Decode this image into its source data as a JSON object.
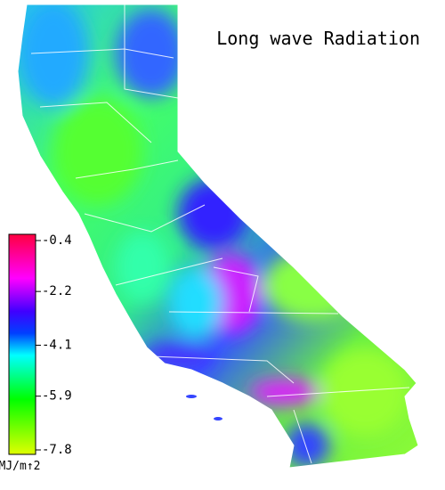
{
  "title": "Long wave Radiation",
  "colorbar": {
    "ticks": [
      -0.4,
      -2.2,
      -4.1,
      -5.9,
      -7.8
    ],
    "unit": "MJ/m↑2"
  }
}
